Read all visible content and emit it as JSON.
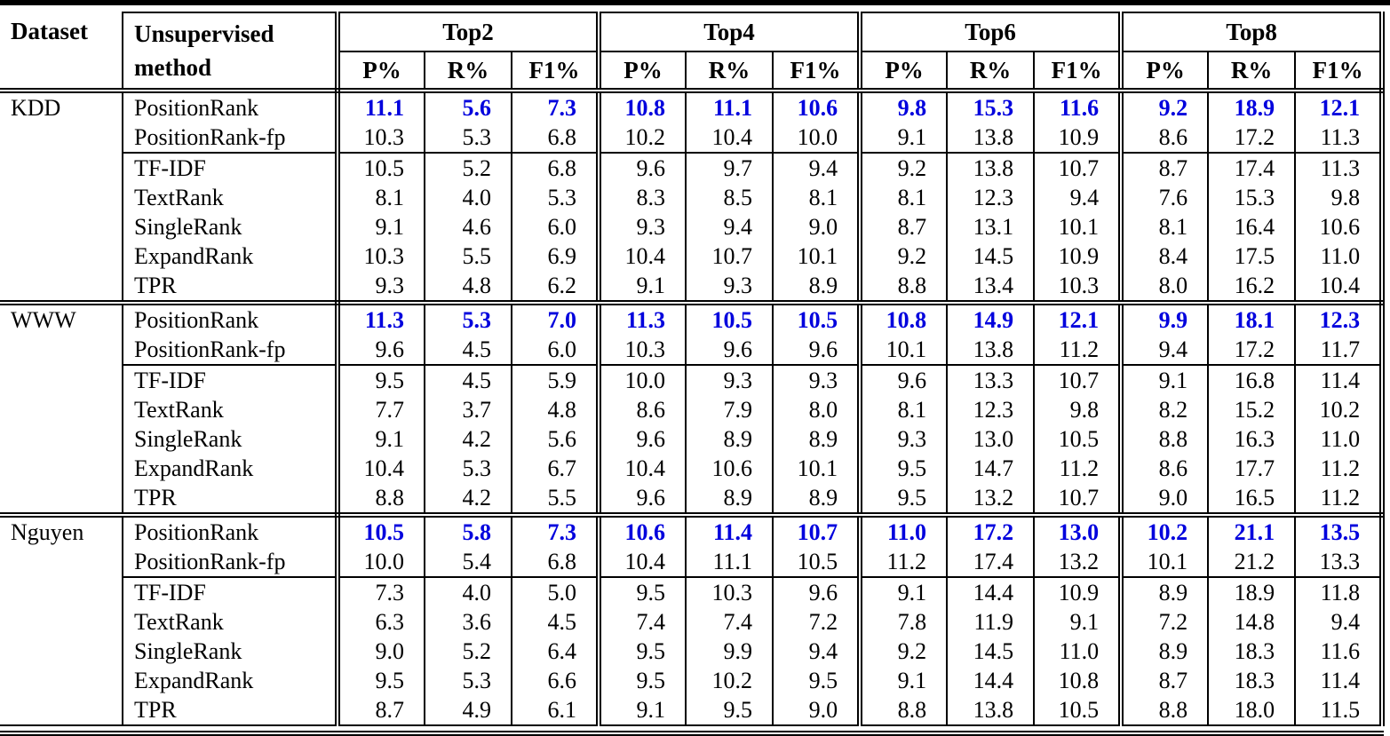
{
  "colors": {
    "highlight_blue": "#0000dd"
  },
  "header": {
    "dataset_label": "Dataset",
    "method_label_line1": "Unsupervised",
    "method_label_line2": "method",
    "groups": [
      "Top2",
      "Top4",
      "Top6",
      "Top8"
    ],
    "metrics": [
      "P%",
      "R%",
      "F1%"
    ]
  },
  "blocks": [
    {
      "dataset": "KDD",
      "rows": [
        {
          "method": "PositionRank",
          "highlight": true,
          "values": [
            "11.1",
            "5.6",
            "7.3",
            "10.8",
            "11.1",
            "10.6",
            "9.8",
            "15.3",
            "11.6",
            "9.2",
            "18.9",
            "12.1"
          ]
        },
        {
          "method": "PositionRank-fp",
          "values": [
            "10.3",
            "5.3",
            "6.8",
            "10.2",
            "10.4",
            "10.0",
            "9.1",
            "13.8",
            "10.9",
            "8.6",
            "17.2",
            "11.3"
          ]
        },
        {
          "method": "TF-IDF",
          "values": [
            "10.5",
            "5.2",
            "6.8",
            "9.6",
            "9.7",
            "9.4",
            "9.2",
            "13.8",
            "10.7",
            "8.7",
            "17.4",
            "11.3"
          ]
        },
        {
          "method": "TextRank",
          "values": [
            "8.1",
            "4.0",
            "5.3",
            "8.3",
            "8.5",
            "8.1",
            "8.1",
            "12.3",
            "9.4",
            "7.6",
            "15.3",
            "9.8"
          ]
        },
        {
          "method": "SingleRank",
          "values": [
            "9.1",
            "4.6",
            "6.0",
            "9.3",
            "9.4",
            "9.0",
            "8.7",
            "13.1",
            "10.1",
            "8.1",
            "16.4",
            "10.6"
          ]
        },
        {
          "method": "ExpandRank",
          "values": [
            "10.3",
            "5.5",
            "6.9",
            "10.4",
            "10.7",
            "10.1",
            "9.2",
            "14.5",
            "10.9",
            "8.4",
            "17.5",
            "11.0"
          ]
        },
        {
          "method": "TPR",
          "values": [
            "9.3",
            "4.8",
            "6.2",
            "9.1",
            "9.3",
            "8.9",
            "8.8",
            "13.4",
            "10.3",
            "8.0",
            "16.2",
            "10.4"
          ]
        }
      ]
    },
    {
      "dataset": "WWW",
      "rows": [
        {
          "method": "PositionRank",
          "highlight": true,
          "values": [
            "11.3",
            "5.3",
            "7.0",
            "11.3",
            "10.5",
            "10.5",
            "10.8",
            "14.9",
            "12.1",
            "9.9",
            "18.1",
            "12.3"
          ]
        },
        {
          "method": "PositionRank-fp",
          "values": [
            "9.6",
            "4.5",
            "6.0",
            "10.3",
            "9.6",
            "9.6",
            "10.1",
            "13.8",
            "11.2",
            "9.4",
            "17.2",
            "11.7"
          ]
        },
        {
          "method": "TF-IDF",
          "values": [
            "9.5",
            "4.5",
            "5.9",
            "10.0",
            "9.3",
            "9.3",
            "9.6",
            "13.3",
            "10.7",
            "9.1",
            "16.8",
            "11.4"
          ]
        },
        {
          "method": "TextRank",
          "values": [
            "7.7",
            "3.7",
            "4.8",
            "8.6",
            "7.9",
            "8.0",
            "8.1",
            "12.3",
            "9.8",
            "8.2",
            "15.2",
            "10.2"
          ]
        },
        {
          "method": "SingleRank",
          "values": [
            "9.1",
            "4.2",
            "5.6",
            "9.6",
            "8.9",
            "8.9",
            "9.3",
            "13.0",
            "10.5",
            "8.8",
            "16.3",
            "11.0"
          ]
        },
        {
          "method": "ExpandRank",
          "values": [
            "10.4",
            "5.3",
            "6.7",
            "10.4",
            "10.6",
            "10.1",
            "9.5",
            "14.7",
            "11.2",
            "8.6",
            "17.7",
            "11.2"
          ]
        },
        {
          "method": "TPR",
          "values": [
            "8.8",
            "4.2",
            "5.5",
            "9.6",
            "8.9",
            "8.9",
            "9.5",
            "13.2",
            "10.7",
            "9.0",
            "16.5",
            "11.2"
          ]
        }
      ]
    },
    {
      "dataset": "Nguyen",
      "rows": [
        {
          "method": "PositionRank",
          "highlight": true,
          "values": [
            "10.5",
            "5.8",
            "7.3",
            "10.6",
            "11.4",
            "10.7",
            "11.0",
            "17.2",
            "13.0",
            "10.2",
            "21.1",
            "13.5"
          ]
        },
        {
          "method": "PositionRank-fp",
          "values": [
            "10.0",
            "5.4",
            "6.8",
            "10.4",
            "11.1",
            "10.5",
            "11.2",
            "17.4",
            "13.2",
            "10.1",
            "21.2",
            "13.3"
          ]
        },
        {
          "method": "TF-IDF",
          "values": [
            "7.3",
            "4.0",
            "5.0",
            "9.5",
            "10.3",
            "9.6",
            "9.1",
            "14.4",
            "10.9",
            "8.9",
            "18.9",
            "11.8"
          ]
        },
        {
          "method": "TextRank",
          "values": [
            "6.3",
            "3.6",
            "4.5",
            "7.4",
            "7.4",
            "7.2",
            "7.8",
            "11.9",
            "9.1",
            "7.2",
            "14.8",
            "9.4"
          ]
        },
        {
          "method": "SingleRank",
          "values": [
            "9.0",
            "5.2",
            "6.4",
            "9.5",
            "9.9",
            "9.4",
            "9.2",
            "14.5",
            "11.0",
            "8.9",
            "18.3",
            "11.6"
          ]
        },
        {
          "method": "ExpandRank",
          "values": [
            "9.5",
            "5.3",
            "6.6",
            "9.5",
            "10.2",
            "9.5",
            "9.1",
            "14.4",
            "10.8",
            "8.7",
            "18.3",
            "11.4"
          ]
        },
        {
          "method": "TPR",
          "values": [
            "8.7",
            "4.9",
            "6.1",
            "9.1",
            "9.5",
            "9.0",
            "8.8",
            "13.8",
            "10.5",
            "8.8",
            "18.0",
            "11.5"
          ]
        }
      ]
    }
  ]
}
